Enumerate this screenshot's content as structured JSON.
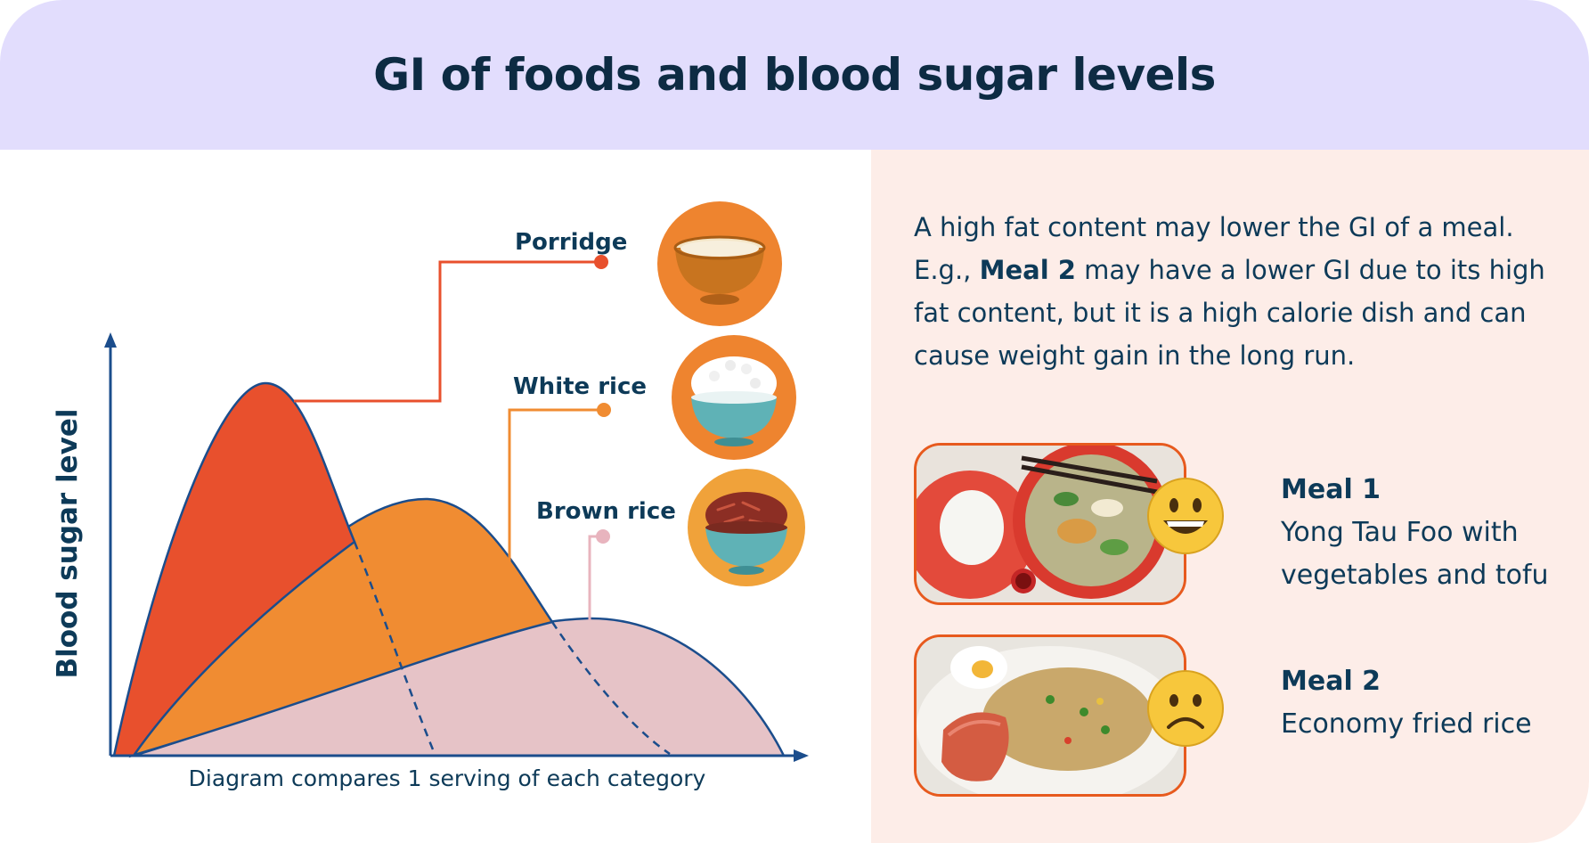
{
  "title": "GI of foods and blood sugar levels",
  "diagram": {
    "y_axis_label": "Blood sugar level",
    "caption": "Diagram compares 1 serving of each category",
    "foods": [
      {
        "label": "Porridge",
        "color": "#e8502d",
        "marker_color": "#e8502d",
        "bowl": "orange-bowl-porridge-icon"
      },
      {
        "label": "White rice",
        "color": "#f08c32",
        "marker_color": "#f08c32",
        "bowl": "white-rice-bowl-icon"
      },
      {
        "label": "Brown rice",
        "color": "#e6c3c7",
        "marker_color": "#e8b4be",
        "bowl": "brown-rice-bowl-icon"
      }
    ]
  },
  "note": {
    "before": "A high fat content may lower the GI of a meal. E.g., ",
    "bold": "Meal 2",
    "after": " may have a lower GI due to its high fat content, but it is a high calorie dish and can cause weight gain in the long run."
  },
  "meals": [
    {
      "name": "Meal 1",
      "desc": "Yong Tau Foo with vegetables and tofu",
      "face": "grinning-face-icon"
    },
    {
      "name": "Meal 2",
      "desc": "Economy fried rice",
      "face": "frowning-face-icon"
    }
  ],
  "colors": {
    "header_bg": "#e2ddfd",
    "right_bg": "#fdede8",
    "text_dark": "#0d3a58",
    "axis": "#1b4d8c",
    "circle_bg": "#ee842f"
  }
}
